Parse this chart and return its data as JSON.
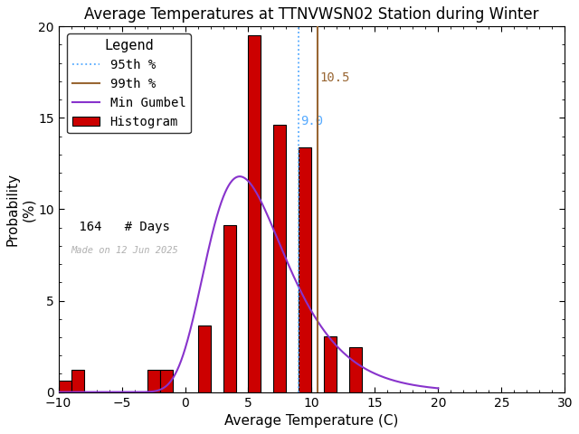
{
  "title": "Average Temperatures at TTNVWSN02 Station during Winter",
  "xlabel": "Average Temperature (C)",
  "ylabel": "Probability\n(%)",
  "xlim": [
    -10,
    30
  ],
  "ylim": [
    0,
    20
  ],
  "xticks": [
    -10,
    -5,
    0,
    5,
    10,
    15,
    20,
    25,
    30
  ],
  "yticks": [
    0,
    5,
    10,
    15,
    20
  ],
  "bin_lefts": [
    -10,
    -9,
    -3,
    -2,
    1,
    3,
    5,
    7,
    9,
    11,
    13
  ],
  "bin_widths": [
    1,
    1,
    1,
    1,
    1,
    1,
    1,
    1,
    1,
    1,
    1
  ],
  "bin_heights": [
    0.61,
    1.22,
    1.22,
    1.22,
    3.66,
    9.15,
    19.51,
    14.63,
    13.41,
    3.05,
    2.44
  ],
  "gumbel_mu": 5.5,
  "gumbel_beta": 2.1,
  "n_days": 164,
  "percentile_95": 9.0,
  "percentile_99": 10.5,
  "bar_color": "#cc0000",
  "bar_edgecolor": "#000000",
  "line_95_color": "#55aaff",
  "line_99_color": "#996633",
  "gumbel_color": "#8833cc",
  "watermark": "Made on 12 Jun 2025",
  "watermark_color": "#b0b0b0",
  "background_color": "#ffffff",
  "title_fontsize": 12,
  "axis_fontsize": 11,
  "legend_fontsize": 10
}
